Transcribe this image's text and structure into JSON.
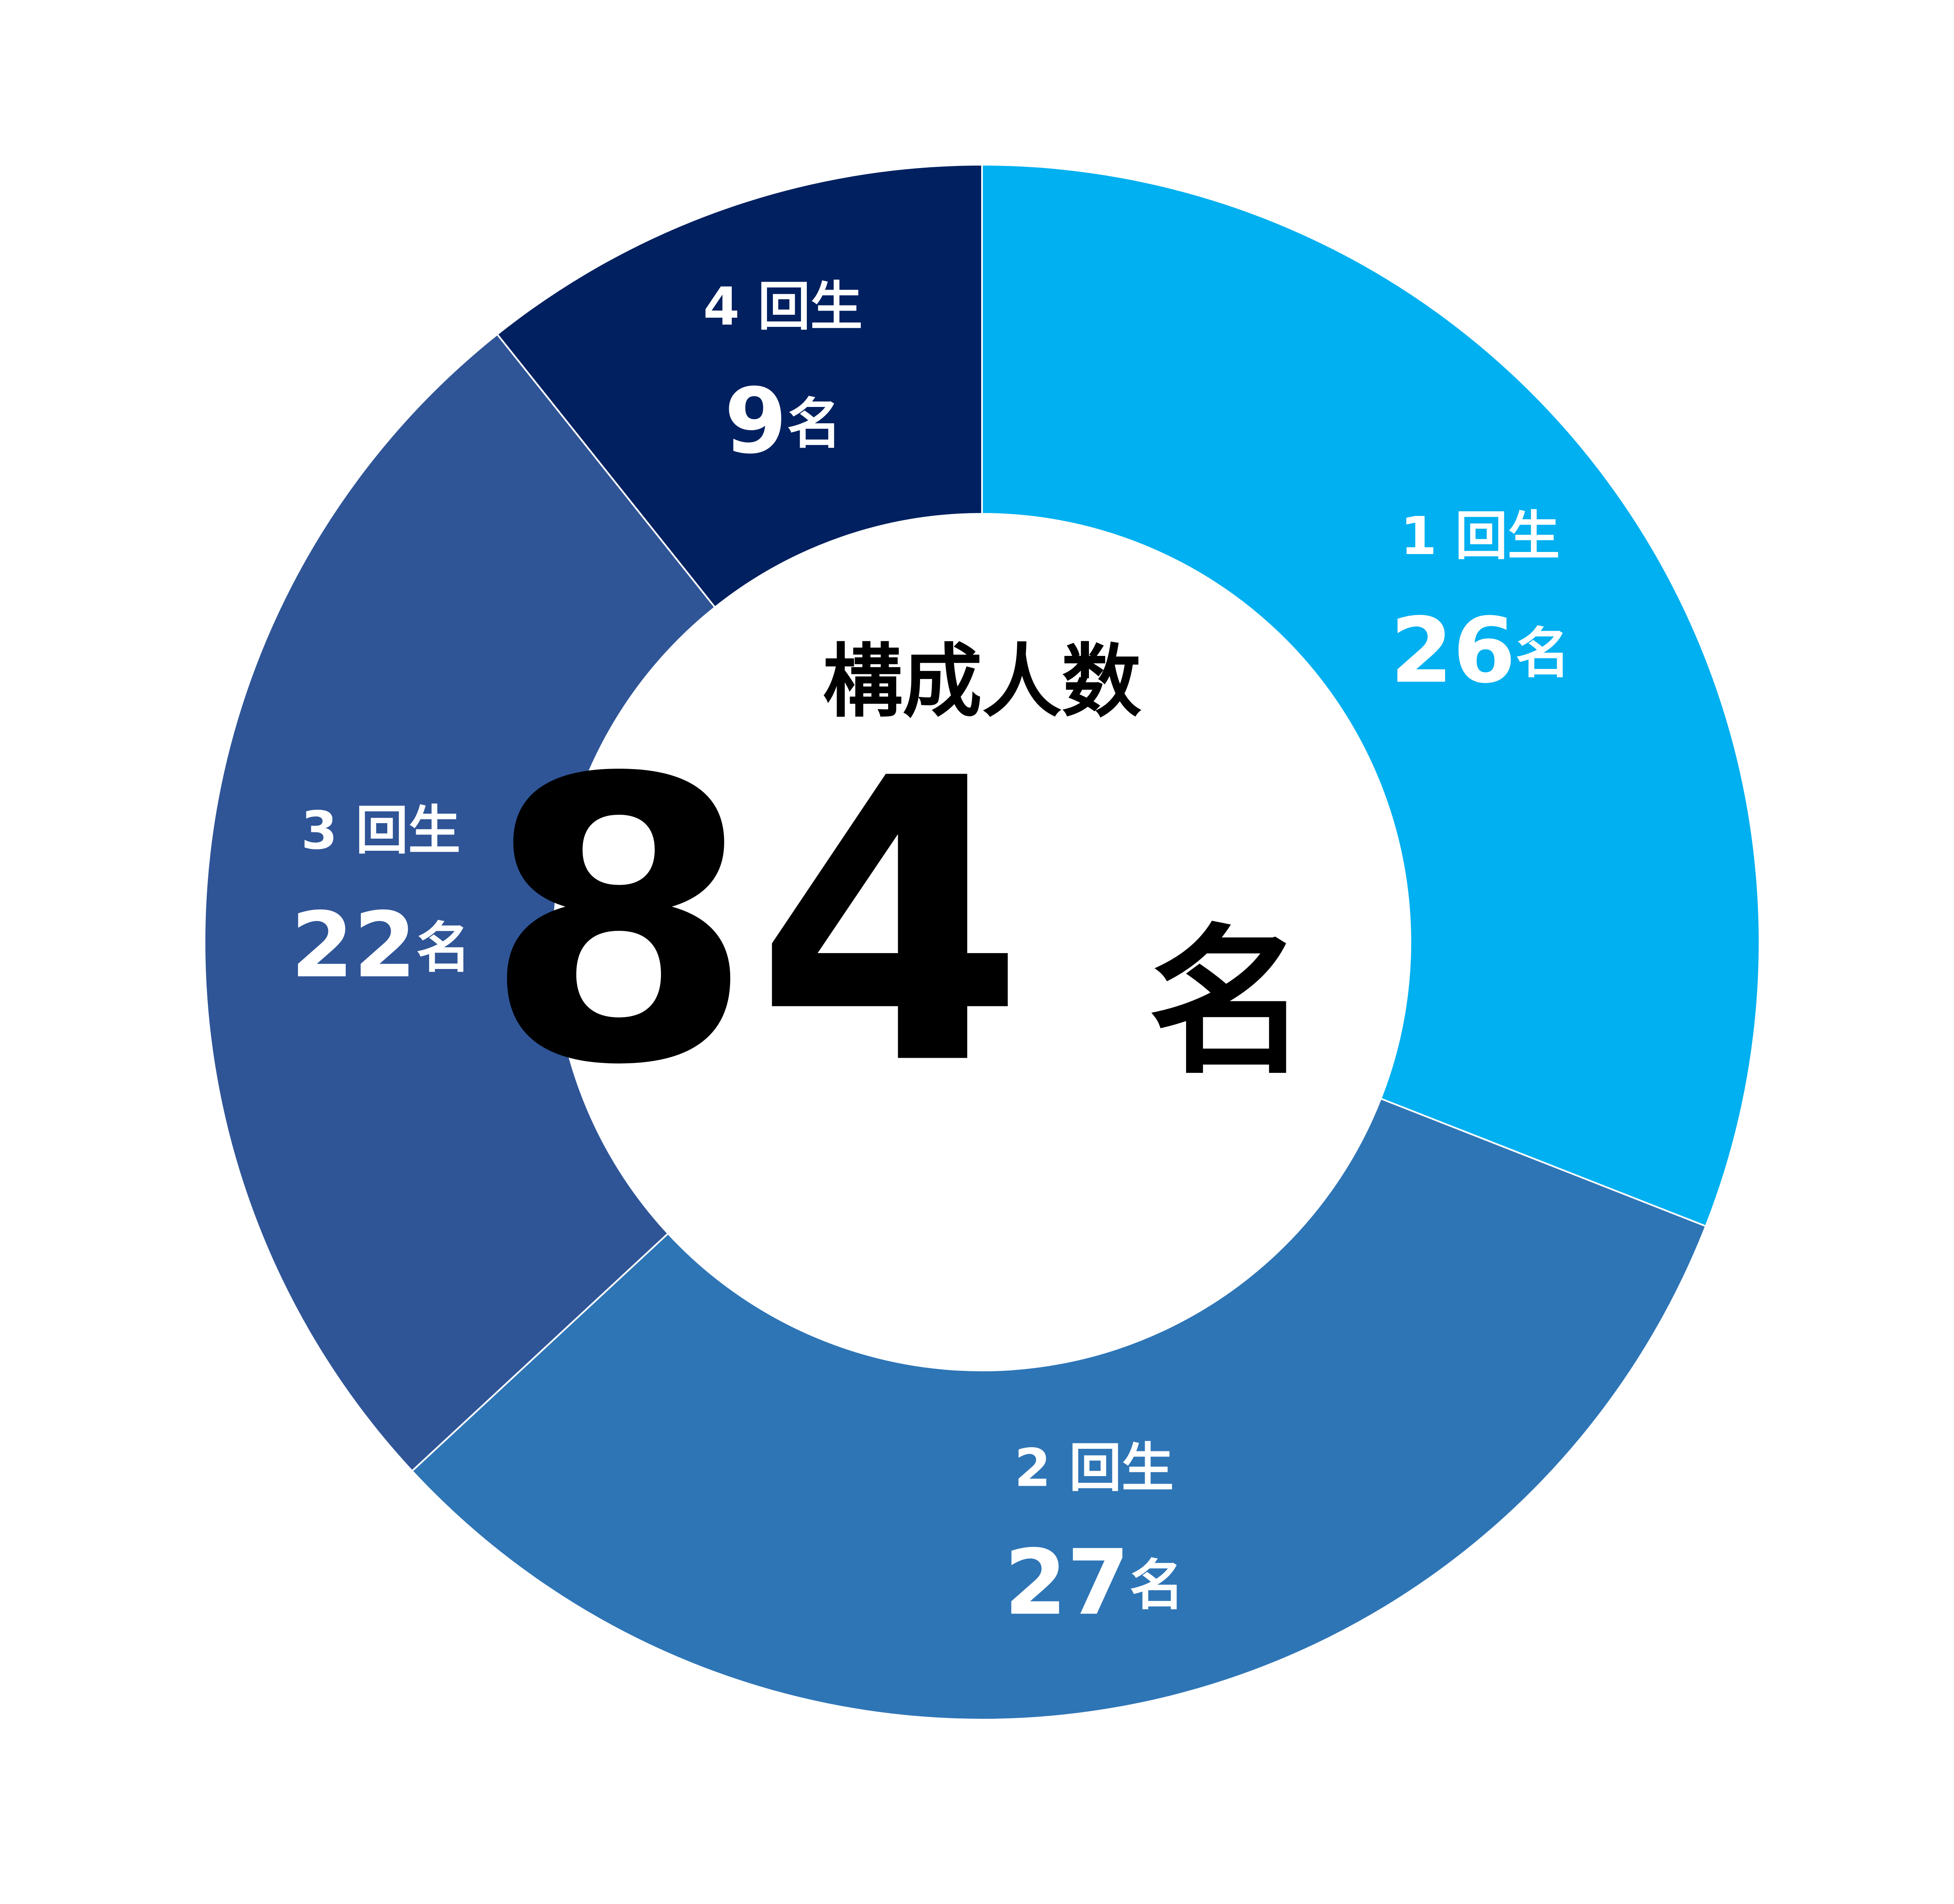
{
  "chart_data": {
    "type": "donut",
    "categories": [
      "1 回生",
      "2 回生",
      "3 回生",
      "4 回生"
    ],
    "values": [
      26,
      27,
      22,
      9
    ],
    "value_labels": [
      "26名",
      "27名",
      "22名",
      "9名"
    ],
    "colors": [
      "#00b0f0",
      "#2e75b6",
      "#2f5597",
      "#002060"
    ],
    "center_label": "構成人数",
    "total": 84,
    "total_unit": "名"
  }
}
